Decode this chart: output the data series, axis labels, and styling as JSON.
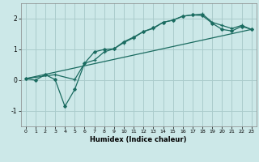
{
  "title": "",
  "xlabel": "Humidex (Indice chaleur)",
  "ylabel": "",
  "bg_color": "#cce8e8",
  "grid_color": "#aacccc",
  "line_color": "#1a6b60",
  "xlim": [
    -0.5,
    23.5
  ],
  "ylim": [
    -1.5,
    2.5
  ],
  "xticks": [
    0,
    1,
    2,
    3,
    4,
    5,
    6,
    7,
    8,
    9,
    10,
    11,
    12,
    13,
    14,
    15,
    16,
    17,
    18,
    19,
    20,
    21,
    22,
    23
  ],
  "yticks": [
    -1,
    0,
    1,
    2
  ],
  "line1_x": [
    0,
    1,
    2,
    3,
    4,
    5,
    6,
    7,
    8,
    9,
    10,
    11,
    12,
    13,
    14,
    15,
    16,
    17,
    18,
    19,
    20,
    21,
    22,
    23
  ],
  "line1_y": [
    0.05,
    0.0,
    0.18,
    0.02,
    -0.85,
    -0.3,
    0.55,
    0.92,
    1.0,
    1.02,
    1.25,
    1.4,
    1.58,
    1.7,
    1.88,
    1.95,
    2.08,
    2.12,
    2.1,
    1.85,
    1.65,
    1.6,
    1.75,
    1.65
  ],
  "line2_x": [
    0,
    3,
    5,
    6,
    7,
    8,
    9,
    10,
    11,
    12,
    13,
    14,
    15,
    16,
    17,
    18,
    19,
    20,
    21,
    22,
    23
  ],
  "line2_y": [
    0.05,
    0.18,
    0.02,
    0.55,
    0.65,
    0.92,
    1.02,
    1.22,
    1.38,
    1.58,
    1.68,
    1.88,
    1.95,
    2.08,
    2.12,
    2.15,
    1.88,
    1.78,
    1.68,
    1.78,
    1.65
  ],
  "line3_x": [
    0,
    23
  ],
  "line3_y": [
    0.05,
    1.65
  ]
}
